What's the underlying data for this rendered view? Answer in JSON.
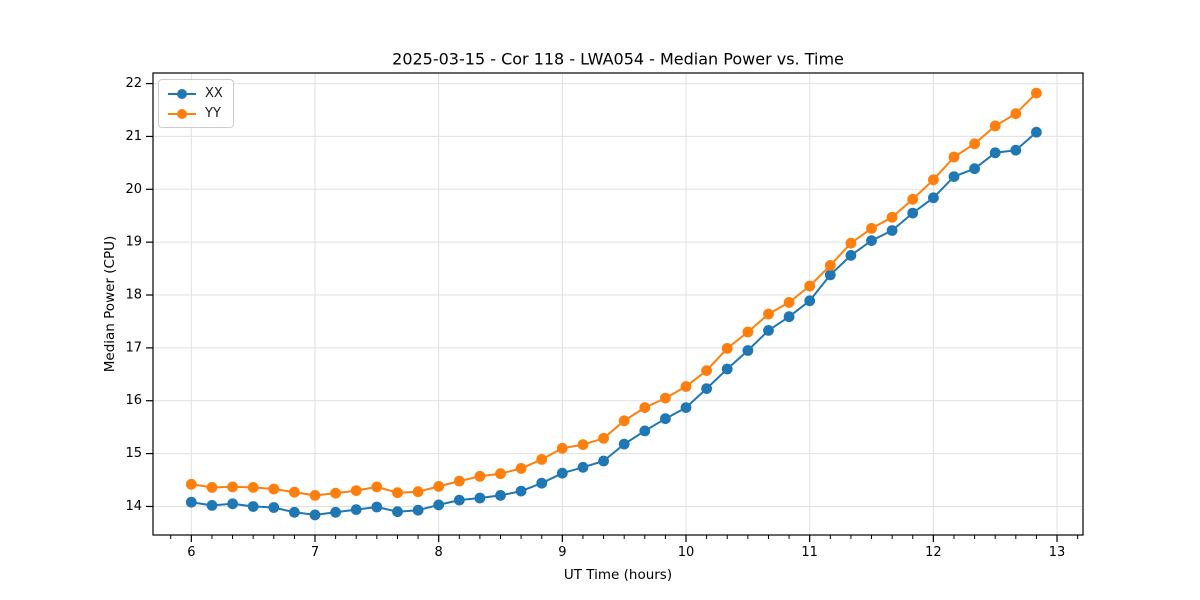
{
  "chart_data": {
    "type": "line",
    "title": "2025-03-15 - Cor 118 - LWA054 - Median Power vs. Time",
    "xlabel": "UT Time (hours)",
    "ylabel": "Median Power (CPU)",
    "xlim": [
      5.69,
      13.21
    ],
    "ylim": [
      13.46,
      22.2
    ],
    "x_ticks": [
      6,
      7,
      8,
      9,
      10,
      11,
      12,
      13
    ],
    "y_ticks": [
      14,
      15,
      16,
      17,
      18,
      19,
      20,
      21,
      22
    ],
    "x_minor_step": 0.1666667,
    "grid": true,
    "grid_color": "#e0e0e0",
    "spine_color": "#000000",
    "legend_position": "upper left",
    "marker": "circle",
    "x": [
      6.0,
      6.1667,
      6.3333,
      6.5,
      6.6667,
      6.8333,
      7.0,
      7.1667,
      7.3333,
      7.5,
      7.6667,
      7.8333,
      8.0,
      8.1667,
      8.3333,
      8.5,
      8.6667,
      8.8333,
      9.0,
      9.1667,
      9.3333,
      9.5,
      9.6667,
      9.8333,
      10.0,
      10.1667,
      10.3333,
      10.5,
      10.6667,
      10.8333,
      11.0,
      11.1667,
      11.3333,
      11.5,
      11.6667,
      11.8333,
      12.0,
      12.1667,
      12.3333,
      12.5,
      12.6667,
      12.8333
    ],
    "series": [
      {
        "name": "XX",
        "color": "#1f77b4",
        "values": [
          14.08,
          14.02,
          14.05,
          14.0,
          13.98,
          13.89,
          13.84,
          13.89,
          13.94,
          13.99,
          13.9,
          13.93,
          14.03,
          14.12,
          14.16,
          14.21,
          14.29,
          14.44,
          14.63,
          14.74,
          14.86,
          15.18,
          15.43,
          15.66,
          15.87,
          16.23,
          16.6,
          16.95,
          17.33,
          17.59,
          17.89,
          18.38,
          18.75,
          19.03,
          19.22,
          19.55,
          19.84,
          20.24,
          20.39,
          20.69,
          20.74,
          21.08
        ]
      },
      {
        "name": "YY",
        "color": "#ff7f0e",
        "values": [
          14.42,
          14.36,
          14.37,
          14.36,
          14.33,
          14.27,
          14.21,
          14.25,
          14.3,
          14.37,
          14.26,
          14.28,
          14.38,
          14.48,
          14.57,
          14.62,
          14.72,
          14.89,
          15.1,
          15.17,
          15.29,
          15.62,
          15.87,
          16.05,
          16.27,
          16.57,
          16.99,
          17.3,
          17.64,
          17.86,
          18.17,
          18.56,
          18.98,
          19.26,
          19.47,
          19.81,
          20.18,
          20.61,
          20.86,
          21.2,
          21.43,
          21.82
        ]
      }
    ]
  }
}
